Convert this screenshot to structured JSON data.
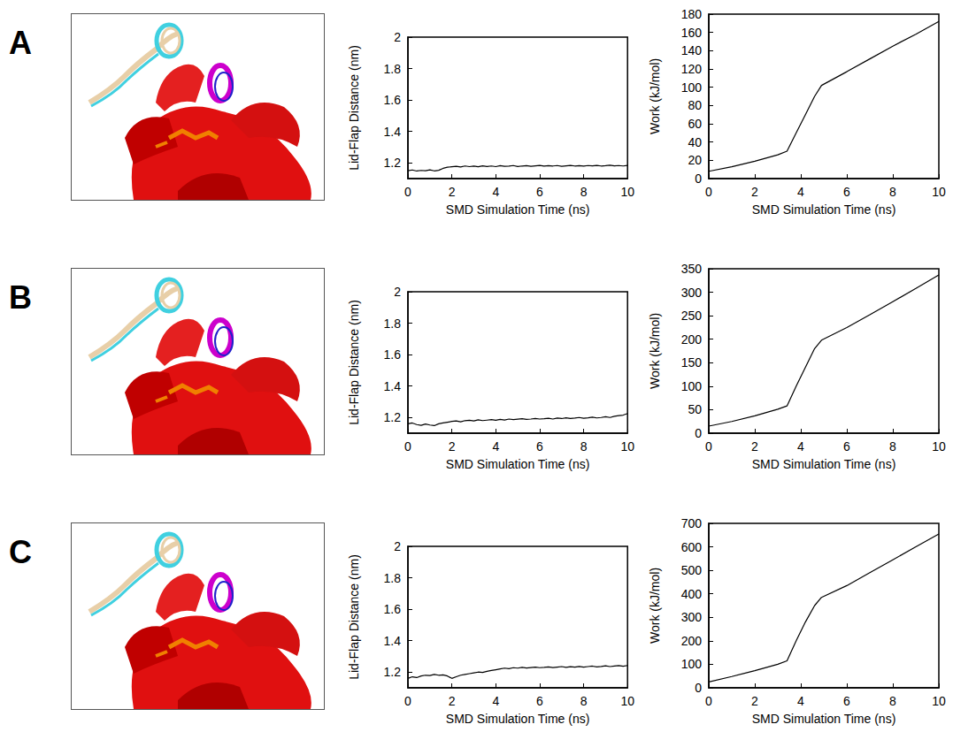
{
  "panel_labels": [
    "A",
    "B",
    "C"
  ],
  "chart_data": [
    {
      "type": "line",
      "xlabel": "SMD Simulation Time (ns)",
      "ylabel": "Lid-Flap Distance (nm)",
      "color": "#000000",
      "grid": false,
      "xlim": [
        0,
        10
      ],
      "xticks": [
        0,
        2,
        4,
        6,
        8,
        10
      ],
      "ylim": [
        1.1,
        2
      ],
      "yticks": [
        1.2,
        1.4,
        1.6,
        1.8,
        2
      ],
      "x": [
        0,
        0.2,
        0.4,
        0.6,
        0.8,
        1,
        1.2,
        1.4,
        1.6,
        1.8,
        2,
        2.2,
        2.4,
        2.6,
        2.8,
        3,
        3.2,
        3.4,
        3.6,
        3.8,
        4,
        4.2,
        4.4,
        4.6,
        4.8,
        5,
        5.2,
        5.4,
        5.6,
        5.8,
        6,
        6.2,
        6.4,
        6.6,
        6.8,
        7,
        7.2,
        7.4,
        7.6,
        7.8,
        8,
        8.2,
        8.4,
        8.6,
        8.8,
        9,
        9.2,
        9.4,
        9.6,
        9.8,
        10
      ],
      "values": [
        1.15,
        1.155,
        1.148,
        1.152,
        1.15,
        1.156,
        1.149,
        1.153,
        1.165,
        1.172,
        1.175,
        1.178,
        1.174,
        1.18,
        1.176,
        1.179,
        1.175,
        1.181,
        1.177,
        1.18,
        1.176,
        1.182,
        1.178,
        1.179,
        1.183,
        1.177,
        1.18,
        1.182,
        1.178,
        1.181,
        1.184,
        1.179,
        1.182,
        1.18,
        1.183,
        1.178,
        1.181,
        1.184,
        1.18,
        1.182,
        1.179,
        1.183,
        1.181,
        1.184,
        1.18,
        1.182,
        1.185,
        1.181,
        1.183,
        1.18,
        1.184
      ]
    },
    {
      "type": "line",
      "xlabel": "SMD Simulation Time (ns)",
      "ylabel": "Work (kJ/mol)",
      "color": "#000000",
      "grid": false,
      "xlim": [
        0,
        10
      ],
      "xticks": [
        0,
        2,
        4,
        6,
        8,
        10
      ],
      "ylim": [
        0,
        180
      ],
      "yticks": [
        0,
        20,
        40,
        60,
        80,
        100,
        120,
        140,
        160,
        180
      ],
      "x": [
        0,
        1,
        2,
        3,
        3.4,
        3.8,
        4.2,
        4.6,
        4.9,
        6,
        7,
        8,
        9,
        10
      ],
      "values": [
        8,
        13,
        19,
        26,
        30,
        50,
        70,
        90,
        102,
        117,
        131,
        145,
        158,
        172
      ]
    },
    {
      "type": "line",
      "xlabel": "SMD Simulation Time (ns)",
      "ylabel": "Lid-Flap Distance (nm)",
      "color": "#000000",
      "grid": false,
      "xlim": [
        0,
        10
      ],
      "xticks": [
        0,
        2,
        4,
        6,
        8,
        10
      ],
      "ylim": [
        1.1,
        2
      ],
      "yticks": [
        1.2,
        1.4,
        1.6,
        1.8,
        2
      ],
      "x": [
        0,
        0.2,
        0.4,
        0.6,
        0.8,
        1,
        1.2,
        1.4,
        1.6,
        1.8,
        2,
        2.2,
        2.4,
        2.6,
        2.8,
        3,
        3.2,
        3.4,
        3.6,
        3.8,
        4,
        4.2,
        4.4,
        4.6,
        4.8,
        5,
        5.2,
        5.4,
        5.6,
        5.8,
        6,
        6.2,
        6.4,
        6.6,
        6.8,
        7,
        7.2,
        7.4,
        7.6,
        7.8,
        8,
        8.2,
        8.4,
        8.6,
        8.8,
        9,
        9.2,
        9.4,
        9.6,
        9.8,
        10
      ],
      "values": [
        1.16,
        1.165,
        1.155,
        1.15,
        1.158,
        1.152,
        1.148,
        1.16,
        1.165,
        1.17,
        1.175,
        1.178,
        1.172,
        1.18,
        1.182,
        1.178,
        1.185,
        1.18,
        1.183,
        1.186,
        1.182,
        1.188,
        1.184,
        1.19,
        1.186,
        1.189,
        1.192,
        1.188,
        1.19,
        1.194,
        1.19,
        1.192,
        1.195,
        1.19,
        1.196,
        1.193,
        1.198,
        1.194,
        1.196,
        1.2,
        1.195,
        1.198,
        1.202,
        1.197,
        1.2,
        1.205,
        1.2,
        1.208,
        1.212,
        1.215,
        1.225
      ]
    },
    {
      "type": "line",
      "xlabel": "SMD Simulation Time (ns)",
      "ylabel": "Work (kJ/mol)",
      "color": "#000000",
      "grid": false,
      "xlim": [
        0,
        10
      ],
      "xticks": [
        0,
        2,
        4,
        6,
        8,
        10
      ],
      "ylim": [
        0,
        350
      ],
      "yticks": [
        0,
        50,
        100,
        150,
        200,
        250,
        300,
        350
      ],
      "x": [
        0,
        1,
        2,
        3,
        3.4,
        3.8,
        4.2,
        4.6,
        4.9,
        6,
        7,
        8,
        9,
        10
      ],
      "values": [
        15,
        25,
        37,
        51,
        58,
        100,
        140,
        180,
        198,
        225,
        252,
        280,
        308,
        337
      ]
    },
    {
      "type": "line",
      "xlabel": "SMD Simulation Time (ns)",
      "ylabel": "Lid-Flap Distance (nm)",
      "color": "#000000",
      "grid": false,
      "xlim": [
        0,
        10
      ],
      "xticks": [
        0,
        2,
        4,
        6,
        8,
        10
      ],
      "ylim": [
        1.1,
        2
      ],
      "yticks": [
        1.2,
        1.4,
        1.6,
        1.8,
        2
      ],
      "x": [
        0,
        0.2,
        0.4,
        0.6,
        0.8,
        1,
        1.2,
        1.4,
        1.6,
        1.8,
        2,
        2.2,
        2.4,
        2.6,
        2.8,
        3,
        3.2,
        3.4,
        3.6,
        3.8,
        4,
        4.2,
        4.4,
        4.6,
        4.8,
        5,
        5.2,
        5.4,
        5.6,
        5.8,
        6,
        6.2,
        6.4,
        6.6,
        6.8,
        7,
        7.2,
        7.4,
        7.6,
        7.8,
        8,
        8.2,
        8.4,
        8.6,
        8.8,
        9,
        9.2,
        9.4,
        9.6,
        9.8,
        10
      ],
      "values": [
        1.16,
        1.17,
        1.165,
        1.175,
        1.18,
        1.178,
        1.185,
        1.18,
        1.182,
        1.175,
        1.16,
        1.17,
        1.18,
        1.185,
        1.19,
        1.195,
        1.2,
        1.198,
        1.205,
        1.21,
        1.215,
        1.22,
        1.225,
        1.222,
        1.228,
        1.225,
        1.23,
        1.226,
        1.229,
        1.232,
        1.228,
        1.23,
        1.233,
        1.229,
        1.232,
        1.235,
        1.23,
        1.234,
        1.231,
        1.236,
        1.232,
        1.235,
        1.238,
        1.233,
        1.236,
        1.24,
        1.235,
        1.238,
        1.241,
        1.237,
        1.242
      ]
    },
    {
      "type": "line",
      "xlabel": "SMD Simulation Time (ns)",
      "ylabel": "Work (kJ/mol)",
      "color": "#000000",
      "grid": false,
      "xlim": [
        0,
        10
      ],
      "xticks": [
        0,
        2,
        4,
        6,
        8,
        10
      ],
      "ylim": [
        0,
        700
      ],
      "yticks": [
        0,
        100,
        200,
        300,
        400,
        500,
        600,
        700
      ],
      "x": [
        0,
        1,
        2,
        3,
        3.4,
        3.8,
        4.2,
        4.6,
        4.9,
        6,
        7,
        8,
        9,
        10
      ],
      "values": [
        25,
        48,
        73,
        100,
        115,
        200,
        280,
        350,
        385,
        435,
        490,
        545,
        600,
        655
      ]
    }
  ]
}
